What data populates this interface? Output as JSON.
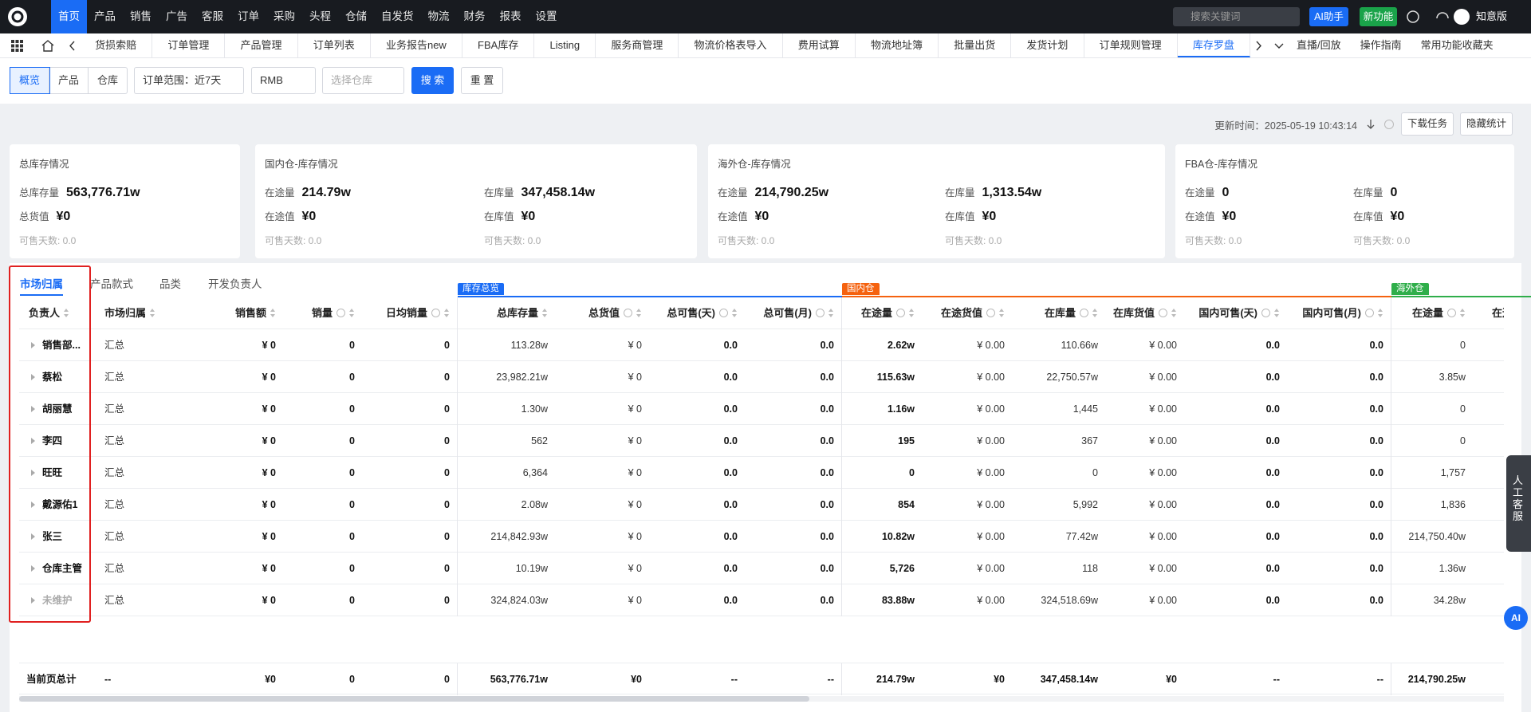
{
  "nav": {
    "menu": [
      "首页",
      "产品",
      "销售",
      "广告",
      "客服",
      "订单",
      "采购",
      "头程",
      "仓储",
      "自发货",
      "物流",
      "财务",
      "报表",
      "设置"
    ],
    "active": 0,
    "search_placeholder": "搜索关键词",
    "ai_button": "AI助手",
    "new_button": "新功能",
    "user": "知意版"
  },
  "tabs": {
    "items": [
      "货损索赔",
      "订单管理",
      "产品管理",
      "订单列表",
      "业务报告new",
      "FBA库存",
      "Listing",
      "服务商管理",
      "物流价格表导入",
      "费用试算",
      "物流地址簿",
      "批量出货",
      "发货计划",
      "订单规则管理",
      "库存罗盘"
    ],
    "active": 14,
    "right": [
      "直播/回放",
      "操作指南",
      "常用功能收藏夹"
    ]
  },
  "filters": {
    "views": [
      "概览",
      "产品",
      "仓库"
    ],
    "active_view": 0,
    "order_range": "订单范围：近7天",
    "currency": "RMB",
    "warehouse_placeholder": "选择仓库",
    "search": "搜 索",
    "reset": "重 置"
  },
  "toolbar": {
    "updated": "更新时间：2025-05-19 10:43:14",
    "download": "下载任务",
    "hide": "隐藏统计"
  },
  "cards": [
    {
      "title": "总库存情况",
      "fields": [
        {
          "label": "总库存量",
          "value": "563,776.71w"
        },
        {
          "label": "总货值",
          "value": "¥0"
        }
      ],
      "notes": [
        "可售天数: 0.0"
      ]
    },
    {
      "title": "国内仓-库存情况",
      "fields": [
        {
          "label": "在途量",
          "value": "214.79w"
        },
        {
          "label": "在库量",
          "value": "347,458.14w"
        },
        {
          "label": "在途值",
          "value": "¥0"
        },
        {
          "label": "在库值",
          "value": "¥0"
        }
      ],
      "notes": [
        "可售天数: 0.0",
        "可售天数: 0.0"
      ]
    },
    {
      "title": "海外仓-库存情况",
      "fields": [
        {
          "label": "在途量",
          "value": "214,790.25w"
        },
        {
          "label": "在库量",
          "value": "1,313.54w"
        },
        {
          "label": "在途值",
          "value": "¥0"
        },
        {
          "label": "在库值",
          "value": "¥0"
        }
      ],
      "notes": [
        "可售天数: 0.0",
        "可售天数: 0.0"
      ]
    },
    {
      "title": "FBA仓-库存情况",
      "fields": [
        {
          "label": "在途量",
          "value": "0"
        },
        {
          "label": "在库量",
          "value": "0"
        },
        {
          "label": "在途值",
          "value": "¥0"
        },
        {
          "label": "在库值",
          "value": "¥0"
        }
      ],
      "notes": [
        "可售天数: 0.0",
        "可售天数: 0.0"
      ]
    }
  ],
  "table": {
    "tabs": [
      "市场归属",
      "产品款式",
      "品类",
      "开发负责人"
    ],
    "active_tab": 0,
    "groups": [
      {
        "label": "库存总览",
        "color": "#1a6cf5"
      },
      {
        "label": "国内仓",
        "color": "#f5620f"
      },
      {
        "label": "海外仓",
        "color": "#2fae4a"
      }
    ],
    "columns": [
      "负责人",
      "市场归属",
      "销售额",
      "销量",
      "日均销量",
      "总库存量",
      "总货值",
      "总可售(天)",
      "总可售(月)",
      "在途量",
      "在途货值",
      "在库量",
      "在库货值",
      "国内可售(天)",
      "国内可售(月)",
      "在途量",
      "在途货值"
    ],
    "rows": [
      [
        "销售部...",
        "汇总",
        "¥ 0",
        "0",
        "0",
        "113.28w",
        "¥ 0",
        "0.0",
        "0.0",
        "2.62w",
        "¥ 0.00",
        "110.66w",
        "¥ 0.00",
        "0.0",
        "0.0",
        "0"
      ],
      [
        "蔡松",
        "汇总",
        "¥ 0",
        "0",
        "0",
        "23,982.21w",
        "¥ 0",
        "0.0",
        "0.0",
        "115.63w",
        "¥ 0.00",
        "22,750.57w",
        "¥ 0.00",
        "0.0",
        "0.0",
        "3.85w"
      ],
      [
        "胡丽慧",
        "汇总",
        "¥ 0",
        "0",
        "0",
        "1.30w",
        "¥ 0",
        "0.0",
        "0.0",
        "1.16w",
        "¥ 0.00",
        "1,445",
        "¥ 0.00",
        "0.0",
        "0.0",
        "0"
      ],
      [
        "李四",
        "汇总",
        "¥ 0",
        "0",
        "0",
        "562",
        "¥ 0",
        "0.0",
        "0.0",
        "195",
        "¥ 0.00",
        "367",
        "¥ 0.00",
        "0.0",
        "0.0",
        "0"
      ],
      [
        "旺旺",
        "汇总",
        "¥ 0",
        "0",
        "0",
        "6,364",
        "¥ 0",
        "0.0",
        "0.0",
        "0",
        "¥ 0.00",
        "0",
        "¥ 0.00",
        "0.0",
        "0.0",
        "1,757"
      ],
      [
        "戴源佑1",
        "汇总",
        "¥ 0",
        "0",
        "0",
        "2.08w",
        "¥ 0",
        "0.0",
        "0.0",
        "854",
        "¥ 0.00",
        "5,992",
        "¥ 0.00",
        "0.0",
        "0.0",
        "1,836"
      ],
      [
        "张三",
        "汇总",
        "¥ 0",
        "0",
        "0",
        "214,842.93w",
        "¥ 0",
        "0.0",
        "0.0",
        "10.82w",
        "¥ 0.00",
        "77.42w",
        "¥ 0.00",
        "0.0",
        "0.0",
        "214,750.40w"
      ],
      [
        "仓库主管",
        "汇总",
        "¥ 0",
        "0",
        "0",
        "10.19w",
        "¥ 0",
        "0.0",
        "0.0",
        "5,726",
        "¥ 0.00",
        "118",
        "¥ 0.00",
        "0.0",
        "0.0",
        "1.36w"
      ],
      [
        "未维护",
        "汇总",
        "¥ 0",
        "0",
        "0",
        "324,824.03w",
        "¥ 0",
        "0.0",
        "0.0",
        "83.88w",
        "¥ 0.00",
        "324,518.69w",
        "¥ 0.00",
        "0.0",
        "0.0",
        "34.28w"
      ]
    ],
    "total": [
      "当前页总计",
      "--",
      "¥0",
      "0",
      "0",
      "563,776.71w",
      "¥0",
      "--",
      "--",
      "214.79w",
      "¥0",
      "347,458.14w",
      "¥0",
      "--",
      "--",
      "214,790.25w"
    ]
  },
  "support": {
    "label": "人工客服",
    "ai": "AI"
  }
}
